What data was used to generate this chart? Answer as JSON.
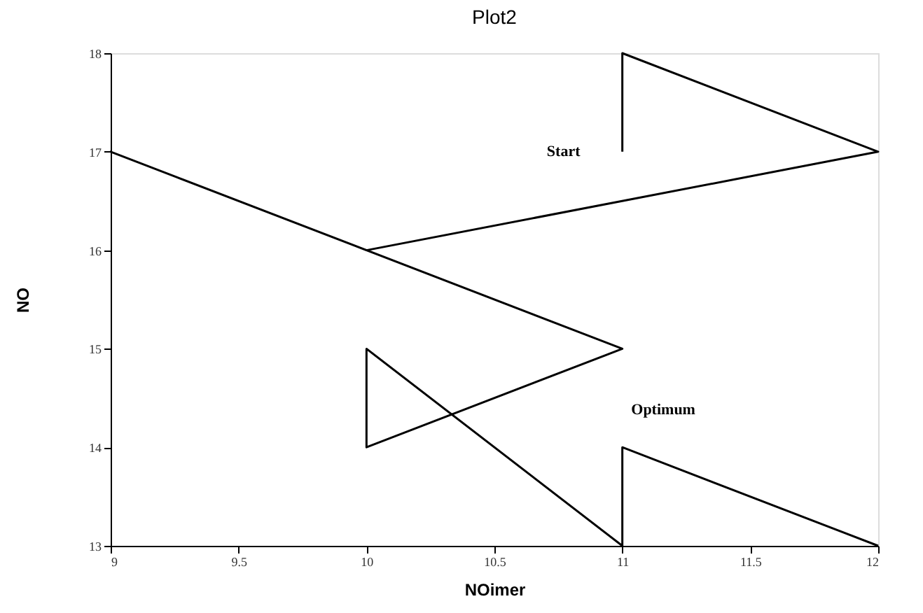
{
  "chart_data": {
    "type": "line",
    "title": "Plot2",
    "xlabel": "NOimer",
    "ylabel": "NO",
    "x": [
      11,
      11,
      12,
      10,
      9,
      11,
      10,
      10,
      11,
      11,
      12
    ],
    "values": [
      17,
      18,
      17,
      16,
      17,
      15,
      14,
      15,
      13,
      14,
      13
    ],
    "color": "#000000",
    "xlim": [
      9,
      12
    ],
    "xticks": [
      9,
      9.5,
      10,
      10.5,
      11,
      11.5,
      12
    ],
    "ylim": [
      13,
      18
    ],
    "yticks": [
      13,
      14,
      15,
      16,
      17,
      18
    ],
    "annotations": [
      "Start",
      "Optimum"
    ],
    "grid": false
  }
}
